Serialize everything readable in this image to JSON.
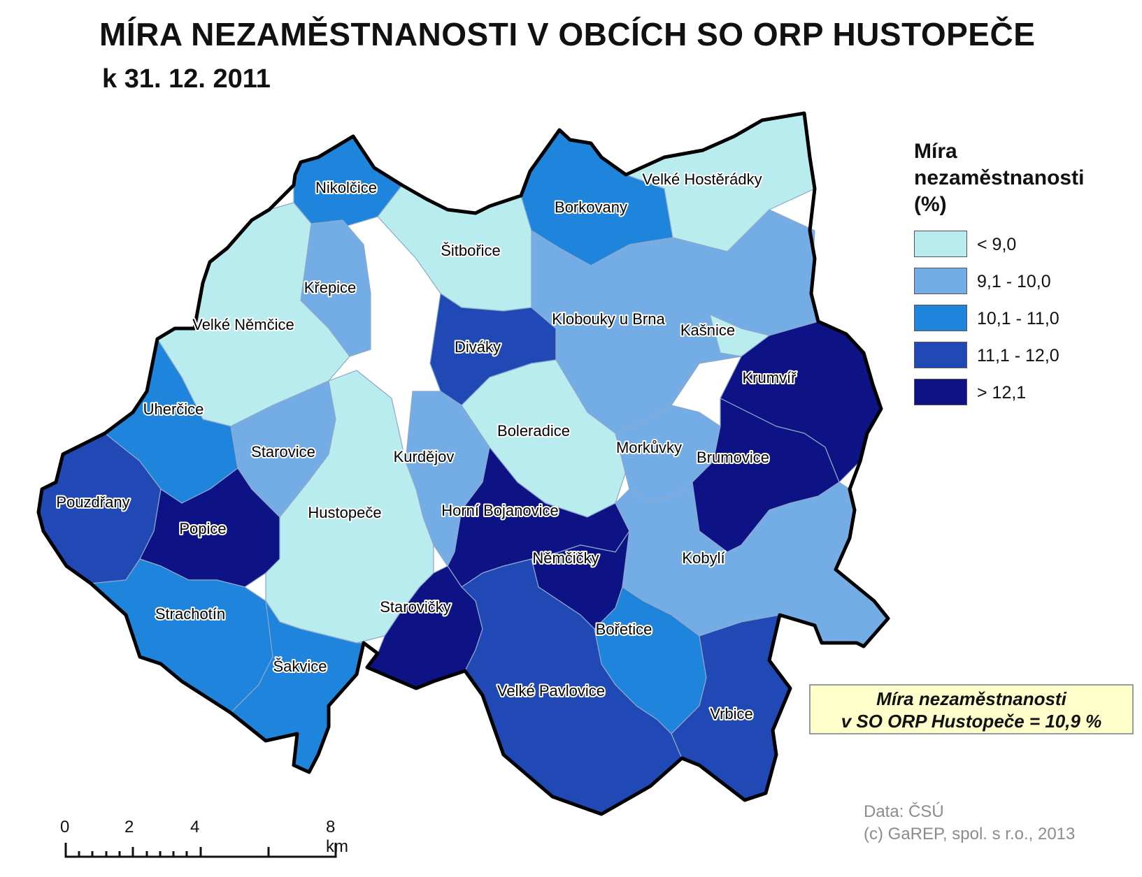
{
  "title": "MÍRA NEZAMĚSTNANOSTI V OBCÍCH SO ORP HUSTOPEČE",
  "subtitle": "k 31. 12. 2011",
  "legend": {
    "title_lines": [
      "Míra",
      "nezaměstnanosti",
      "(%)"
    ],
    "classes": [
      {
        "label": "< 9,0",
        "color": "#b8ecee"
      },
      {
        "label": "9,1 - 10,0",
        "color": "#74ade6"
      },
      {
        "label": "10,1 - 11,0",
        "color": "#1f84dc"
      },
      {
        "label": "11,1 - 12,0",
        "color": "#2049b6"
      },
      {
        "label": "> 12,1",
        "color": "#0d1285"
      }
    ]
  },
  "municipalities": [
    {
      "name": "Nikolčice",
      "class": 2
    },
    {
      "name": "Šitbořice",
      "class": 0
    },
    {
      "name": "Borkovany",
      "class": 2
    },
    {
      "name": "Velké Hostěrádky",
      "class": 0
    },
    {
      "name": "Křepice",
      "class": 1
    },
    {
      "name": "Velké Němčice",
      "class": 0
    },
    {
      "name": "Diváky",
      "class": 3
    },
    {
      "name": "Klobouky u Brna",
      "class": 1
    },
    {
      "name": "Kašnice",
      "class": 0
    },
    {
      "name": "Krumvíř",
      "class": 4
    },
    {
      "name": "Uherčice",
      "class": 2
    },
    {
      "name": "Starovice",
      "class": 1
    },
    {
      "name": "Kurdějov",
      "class": 1
    },
    {
      "name": "Boleradice",
      "class": 0
    },
    {
      "name": "Morkůvky",
      "class": 1
    },
    {
      "name": "Brumovice",
      "class": 4
    },
    {
      "name": "Pouzdřany",
      "class": 3
    },
    {
      "name": "Popice",
      "class": 4
    },
    {
      "name": "Hustopeče",
      "class": 0
    },
    {
      "name": "Horní Bojanovice",
      "class": 4
    },
    {
      "name": "Němčičky",
      "class": 4
    },
    {
      "name": "Kobylí",
      "class": 1
    },
    {
      "name": "Strachotín",
      "class": 2
    },
    {
      "name": "Starovičky",
      "class": 4
    },
    {
      "name": "Bořetice",
      "class": 2
    },
    {
      "name": "Šakvice",
      "class": 2
    },
    {
      "name": "Velké Pavlovice",
      "class": 3
    },
    {
      "name": "Vrbice",
      "class": 3
    }
  ],
  "summary": {
    "line1": "Míra nezaměstnanosti",
    "line2": "v SO ORP Hustopeče = 10,9 %"
  },
  "credits": {
    "data": "Data: ČSÚ",
    "copyright": "(c) GaREP, spol. s r.o., 2013"
  },
  "scale_bar": {
    "labels": [
      "0",
      "2",
      "4",
      "8 km"
    ]
  }
}
